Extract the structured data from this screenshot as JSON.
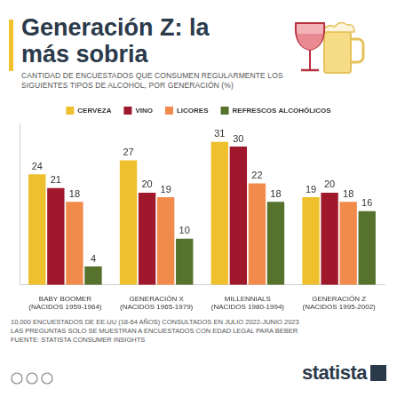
{
  "chart_data": {
    "type": "bar",
    "title": "Generación Z: la más sobria",
    "subtitle": "CANTIDAD DE ENCUESTADOS QUE CONSUMEN REGULARMENTE LOS SIGUIENTES TIPOS DE ALCOHOL, POR GENERACIÓN (%)",
    "categories": [
      "BABY BOOMER (NACIDOS 1959-1964)",
      "GENERACIÓN X (NACIDOS 1965-1979)",
      "MILLENNIALS (NACIDOS 1980-1994)",
      "GENERACIÓN Z (NACIDOS 1995-2002)"
    ],
    "series": [
      {
        "name": "CERVEZA",
        "color": "#efc02d",
        "values": [
          24,
          27,
          31,
          19
        ]
      },
      {
        "name": "VINO",
        "color": "#a0182c",
        "values": [
          21,
          20,
          30,
          20
        ]
      },
      {
        "name": "LICORES",
        "color": "#f08b4b",
        "values": [
          18,
          19,
          22,
          18
        ]
      },
      {
        "name": "REFRESCOS ALCOHÓLICOS",
        "color": "#56722c",
        "values": [
          4,
          10,
          18,
          16
        ]
      }
    ],
    "ylim": [
      0,
      35
    ],
    "data_labels": true,
    "legend": "top",
    "tick_labels": "x",
    "grid": false,
    "annotations": [
      "10,000 ENCUESTADOS DE EE.UU (18-64 AÑOS) CONSULTADOS EN JULIO 2022-JUNIO 2023",
      "LAS PREGUNTAS SOLO SE MUESTRAN A ENCUESTADOS CON EDAD LEGAL PARA BEBER"
    ],
    "source": "FUENTE: STATISTA CONSUMER INSIGHTS",
    "logo": "statista"
  }
}
